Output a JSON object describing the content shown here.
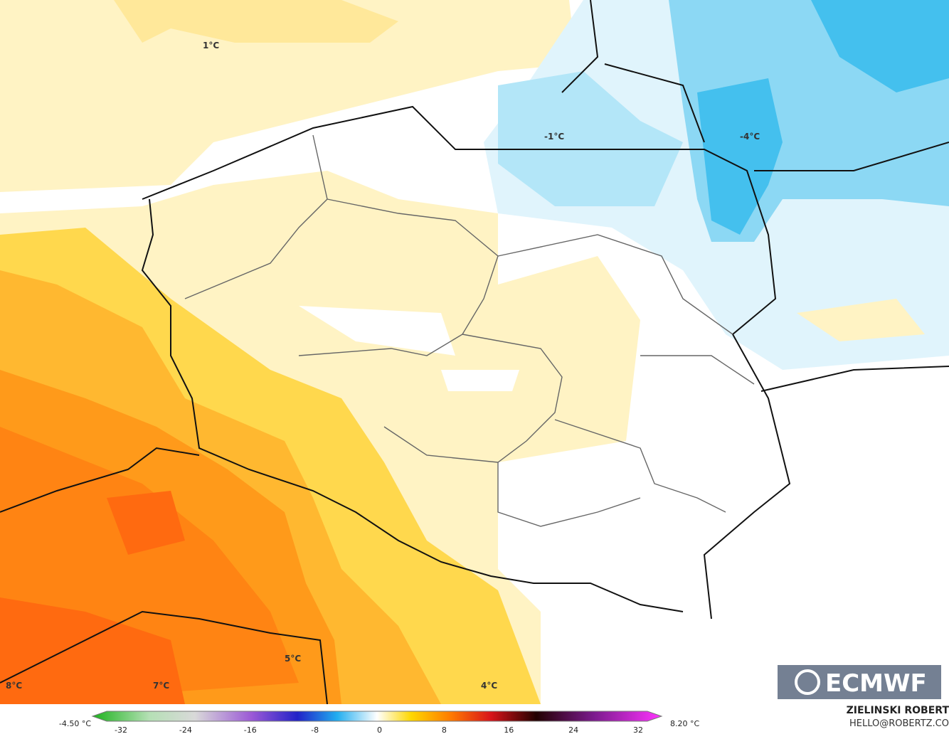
{
  "map": {
    "contour_labels": [
      "1°C",
      "-1°C",
      "-4°C",
      "5°C",
      "8°C",
      "7°C",
      "4°C"
    ],
    "colorbar": {
      "min_label": "-4.50 °C",
      "max_label": "8.20 °C",
      "ticks": [
        "-32",
        "-24",
        "-16",
        "-8",
        "0",
        "8",
        "16",
        "24",
        "32"
      ]
    },
    "logo": "ECMWF",
    "author": "ZIELINSKI ROBERT",
    "contact": "HELLO@ROBERTZ.CO"
  }
}
